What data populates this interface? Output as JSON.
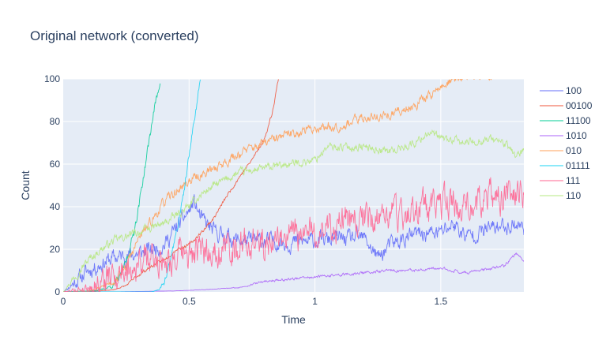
{
  "chart_data": {
    "type": "line",
    "title": "Original network (converted)",
    "xlabel": "Time",
    "ylabel": "Count",
    "xlim": [
      0,
      1.83
    ],
    "ylim": [
      0,
      100
    ],
    "xticks": [
      0,
      0.5,
      1,
      1.5
    ],
    "xtick_labels": [
      "0",
      "0.5",
      "1",
      "1.5"
    ],
    "yticks": [
      0,
      20,
      40,
      60,
      80,
      100
    ],
    "ytick_labels": [
      "0",
      "20",
      "40",
      "60",
      "80",
      "100"
    ],
    "grid": true,
    "legend_position": "right",
    "plot_background": "#e5ecf6",
    "series": [
      {
        "name": "100",
        "color": "#636efa",
        "noise": 3,
        "seed": 11,
        "points": [
          [
            0,
            0
          ],
          [
            0.05,
            5
          ],
          [
            0.1,
            10
          ],
          [
            0.2,
            16
          ],
          [
            0.3,
            18
          ],
          [
            0.4,
            22
          ],
          [
            0.45,
            30
          ],
          [
            0.5,
            38
          ],
          [
            0.52,
            42
          ],
          [
            0.55,
            34
          ],
          [
            0.6,
            28
          ],
          [
            0.7,
            24
          ],
          [
            0.8,
            24
          ],
          [
            0.9,
            23
          ],
          [
            1,
            24
          ],
          [
            1.1,
            25
          ],
          [
            1.2,
            25
          ],
          [
            1.25,
            16
          ],
          [
            1.3,
            22
          ],
          [
            1.4,
            27
          ],
          [
            1.5,
            28
          ],
          [
            1.55,
            32
          ],
          [
            1.6,
            26
          ],
          [
            1.7,
            30
          ],
          [
            1.8,
            32
          ],
          [
            1.83,
            30
          ]
        ]
      },
      {
        "name": "00100",
        "color": "#ef553b",
        "noise": 0.6,
        "seed": 23,
        "points": [
          [
            0,
            0
          ],
          [
            0.1,
            0.3
          ],
          [
            0.15,
            0.5
          ],
          [
            0.2,
            1
          ],
          [
            0.25,
            3
          ],
          [
            0.3,
            8
          ],
          [
            0.35,
            12
          ],
          [
            0.4,
            15
          ],
          [
            0.45,
            20
          ],
          [
            0.5,
            22
          ],
          [
            0.55,
            28
          ],
          [
            0.6,
            35
          ],
          [
            0.65,
            45
          ],
          [
            0.7,
            54
          ],
          [
            0.75,
            62
          ],
          [
            0.8,
            72
          ],
          [
            0.83,
            84
          ],
          [
            0.855,
            100
          ]
        ]
      },
      {
        "name": "11100",
        "color": "#00cc96",
        "noise": 1.5,
        "seed": 37,
        "points": [
          [
            0,
            0
          ],
          [
            0.1,
            0.5
          ],
          [
            0.15,
            1
          ],
          [
            0.2,
            3
          ],
          [
            0.23,
            8
          ],
          [
            0.26,
            18
          ],
          [
            0.28,
            28
          ],
          [
            0.3,
            40
          ],
          [
            0.32,
            55
          ],
          [
            0.34,
            70
          ],
          [
            0.36,
            85
          ],
          [
            0.38,
            96
          ],
          [
            0.385,
            100
          ]
        ]
      },
      {
        "name": "1010",
        "color": "#ab63fa",
        "noise": 0.5,
        "seed": 41,
        "points": [
          [
            0,
            0
          ],
          [
            0.2,
            0
          ],
          [
            0.45,
            0.5
          ],
          [
            0.55,
            1
          ],
          [
            0.7,
            2
          ],
          [
            0.8,
            5
          ],
          [
            0.9,
            6
          ],
          [
            1,
            7
          ],
          [
            1.1,
            8
          ],
          [
            1.2,
            9
          ],
          [
            1.3,
            10
          ],
          [
            1.4,
            10
          ],
          [
            1.5,
            11
          ],
          [
            1.6,
            9
          ],
          [
            1.7,
            11
          ],
          [
            1.75,
            12
          ],
          [
            1.8,
            18
          ],
          [
            1.83,
            15
          ]
        ]
      },
      {
        "name": "010",
        "color": "#ffa15a",
        "noise": 1.8,
        "seed": 53,
        "points": [
          [
            0,
            0
          ],
          [
            0.1,
            0.5
          ],
          [
            0.15,
            2
          ],
          [
            0.2,
            5
          ],
          [
            0.25,
            12
          ],
          [
            0.3,
            25
          ],
          [
            0.35,
            33
          ],
          [
            0.4,
            42
          ],
          [
            0.5,
            52
          ],
          [
            0.6,
            58
          ],
          [
            0.7,
            65
          ],
          [
            0.8,
            70
          ],
          [
            0.9,
            74
          ],
          [
            1,
            77
          ],
          [
            1.1,
            78
          ],
          [
            1.2,
            82
          ],
          [
            1.3,
            83
          ],
          [
            1.4,
            88
          ],
          [
            1.45,
            92
          ],
          [
            1.5,
            96
          ],
          [
            1.55,
            100
          ],
          [
            1.6,
            101
          ],
          [
            1.7,
            102
          ],
          [
            1.83,
            103
          ]
        ]
      },
      {
        "name": "01111",
        "color": "#19d3f3",
        "noise": 1.5,
        "seed": 67,
        "points": [
          [
            0,
            0
          ],
          [
            0.35,
            0
          ],
          [
            0.38,
            1
          ],
          [
            0.4,
            5
          ],
          [
            0.42,
            12
          ],
          [
            0.45,
            28
          ],
          [
            0.47,
            40
          ],
          [
            0.49,
            55
          ],
          [
            0.51,
            72
          ],
          [
            0.53,
            88
          ],
          [
            0.545,
            100
          ]
        ]
      },
      {
        "name": "111",
        "color": "#ff6692",
        "noise": 6,
        "seed": 79,
        "points": [
          [
            0,
            0
          ],
          [
            0.1,
            2
          ],
          [
            0.2,
            8
          ],
          [
            0.3,
            14
          ],
          [
            0.4,
            16
          ],
          [
            0.5,
            17
          ],
          [
            0.6,
            20
          ],
          [
            0.7,
            22
          ],
          [
            0.8,
            24
          ],
          [
            0.9,
            26
          ],
          [
            1,
            28
          ],
          [
            1.1,
            32
          ],
          [
            1.2,
            34
          ],
          [
            1.3,
            36
          ],
          [
            1.4,
            38
          ],
          [
            1.5,
            40
          ],
          [
            1.6,
            42
          ],
          [
            1.7,
            44
          ],
          [
            1.83,
            46
          ]
        ]
      },
      {
        "name": "110",
        "color": "#b6e880",
        "noise": 1.5,
        "seed": 97,
        "points": [
          [
            0,
            0
          ],
          [
            0.05,
            8
          ],
          [
            0.1,
            15
          ],
          [
            0.15,
            20
          ],
          [
            0.2,
            24
          ],
          [
            0.3,
            28
          ],
          [
            0.4,
            32
          ],
          [
            0.5,
            40
          ],
          [
            0.55,
            46
          ],
          [
            0.6,
            50
          ],
          [
            0.7,
            56
          ],
          [
            0.8,
            58
          ],
          [
            0.9,
            60
          ],
          [
            1,
            62
          ],
          [
            1.05,
            68
          ],
          [
            1.1,
            68
          ],
          [
            1.2,
            68
          ],
          [
            1.3,
            66
          ],
          [
            1.4,
            70
          ],
          [
            1.45,
            75
          ],
          [
            1.5,
            72
          ],
          [
            1.6,
            70
          ],
          [
            1.7,
            72
          ],
          [
            1.75,
            70
          ],
          [
            1.8,
            64
          ],
          [
            1.83,
            66
          ]
        ]
      }
    ]
  }
}
